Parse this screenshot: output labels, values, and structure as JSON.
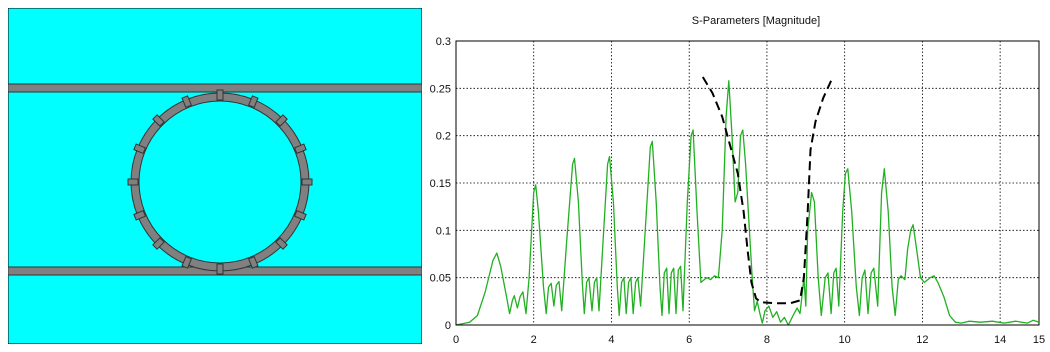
{
  "geometry_view": {
    "background_color": "#00ffff",
    "strip_color": "#808080",
    "ring_color": "#808080"
  },
  "chart_data": {
    "type": "line",
    "title": "S-Parameters [Magnitude]",
    "xlabel": "",
    "ylabel": "",
    "xlim": [
      0,
      15
    ],
    "ylim": [
      0,
      0.3
    ],
    "xticks": [
      0,
      2,
      4,
      6,
      8,
      10,
      12,
      14,
      15
    ],
    "yticks": [
      0,
      0.05,
      0.1,
      0.15,
      0.2,
      0.25,
      0.3
    ],
    "grid": true,
    "series": [
      {
        "color": "#22b022",
        "style": "solid",
        "points": [
          [
            0,
            0
          ],
          [
            0.35,
            0.003
          ],
          [
            0.55,
            0.01
          ],
          [
            0.75,
            0.035
          ],
          [
            0.95,
            0.068
          ],
          [
            1.05,
            0.076
          ],
          [
            1.15,
            0.062
          ],
          [
            1.3,
            0.03
          ],
          [
            1.38,
            0.012
          ],
          [
            1.45,
            0.026
          ],
          [
            1.5,
            0.031
          ],
          [
            1.58,
            0.018
          ],
          [
            1.65,
            0.03
          ],
          [
            1.72,
            0.035
          ],
          [
            1.8,
            0.012
          ],
          [
            1.88,
            0.05
          ],
          [
            2.0,
            0.14
          ],
          [
            2.05,
            0.148
          ],
          [
            2.12,
            0.12
          ],
          [
            2.25,
            0.04
          ],
          [
            2.32,
            0.012
          ],
          [
            2.38,
            0.04
          ],
          [
            2.45,
            0.044
          ],
          [
            2.52,
            0.02
          ],
          [
            2.58,
            0.042
          ],
          [
            2.65,
            0.046
          ],
          [
            2.72,
            0.015
          ],
          [
            2.85,
            0.09
          ],
          [
            3.0,
            0.17
          ],
          [
            3.05,
            0.176
          ],
          [
            3.15,
            0.13
          ],
          [
            3.25,
            0.045
          ],
          [
            3.3,
            0.012
          ],
          [
            3.36,
            0.045
          ],
          [
            3.42,
            0.05
          ],
          [
            3.5,
            0.015
          ],
          [
            3.56,
            0.045
          ],
          [
            3.62,
            0.05
          ],
          [
            3.68,
            0.015
          ],
          [
            3.8,
            0.1
          ],
          [
            3.9,
            0.17
          ],
          [
            3.95,
            0.178
          ],
          [
            4.05,
            0.13
          ],
          [
            4.15,
            0.04
          ],
          [
            4.2,
            0.01
          ],
          [
            4.26,
            0.045
          ],
          [
            4.32,
            0.05
          ],
          [
            4.38,
            0.012
          ],
          [
            4.44,
            0.045
          ],
          [
            4.5,
            0.05
          ],
          [
            4.56,
            0.012
          ],
          [
            4.62,
            0.045
          ],
          [
            4.68,
            0.05
          ],
          [
            4.75,
            0.02
          ],
          [
            4.9,
            0.12
          ],
          [
            5.0,
            0.188
          ],
          [
            5.05,
            0.194
          ],
          [
            5.15,
            0.13
          ],
          [
            5.25,
            0.04
          ],
          [
            5.3,
            0.01
          ],
          [
            5.36,
            0.055
          ],
          [
            5.42,
            0.06
          ],
          [
            5.48,
            0.012
          ],
          [
            5.54,
            0.055
          ],
          [
            5.6,
            0.06
          ],
          [
            5.66,
            0.012
          ],
          [
            5.72,
            0.058
          ],
          [
            5.78,
            0.062
          ],
          [
            5.84,
            0.015
          ],
          [
            5.95,
            0.13
          ],
          [
            6.05,
            0.2
          ],
          [
            6.1,
            0.206
          ],
          [
            6.2,
            0.12
          ],
          [
            6.3,
            0.045
          ],
          [
            6.45,
            0.05
          ],
          [
            6.55,
            0.048
          ],
          [
            6.65,
            0.052
          ],
          [
            6.75,
            0.05
          ],
          [
            6.85,
            0.1
          ],
          [
            6.95,
            0.22
          ],
          [
            7.02,
            0.258
          ],
          [
            7.1,
            0.2
          ],
          [
            7.18,
            0.13
          ],
          [
            7.25,
            0.14
          ],
          [
            7.32,
            0.2
          ],
          [
            7.38,
            0.206
          ],
          [
            7.45,
            0.17
          ],
          [
            7.55,
            0.1
          ],
          [
            7.62,
            0.05
          ],
          [
            7.68,
            0.015
          ],
          [
            7.75,
            0.025
          ],
          [
            7.82,
            0.012
          ],
          [
            7.88,
            0.002
          ],
          [
            7.95,
            0.015
          ],
          [
            8.05,
            0.02
          ],
          [
            8.15,
            0.008
          ],
          [
            8.25,
            0.014
          ],
          [
            8.35,
            0.003
          ],
          [
            8.45,
            0.008
          ],
          [
            8.55,
            0.0
          ],
          [
            8.7,
            0.012
          ],
          [
            8.78,
            0.018
          ],
          [
            8.85,
            0.012
          ],
          [
            8.9,
            0.03
          ],
          [
            8.95,
            0.05
          ],
          [
            9.0,
            0.02
          ],
          [
            9.05,
            0.1
          ],
          [
            9.15,
            0.14
          ],
          [
            9.22,
            0.13
          ],
          [
            9.32,
            0.05
          ],
          [
            9.4,
            0.01
          ],
          [
            9.5,
            0.05
          ],
          [
            9.57,
            0.055
          ],
          [
            9.65,
            0.012
          ],
          [
            9.72,
            0.055
          ],
          [
            9.78,
            0.06
          ],
          [
            9.85,
            0.02
          ],
          [
            9.95,
            0.12
          ],
          [
            10.02,
            0.16
          ],
          [
            10.08,
            0.165
          ],
          [
            10.18,
            0.12
          ],
          [
            10.3,
            0.04
          ],
          [
            10.38,
            0.01
          ],
          [
            10.45,
            0.05
          ],
          [
            10.52,
            0.058
          ],
          [
            10.6,
            0.012
          ],
          [
            10.68,
            0.055
          ],
          [
            10.75,
            0.06
          ],
          [
            10.85,
            0.02
          ],
          [
            10.95,
            0.14
          ],
          [
            11.02,
            0.165
          ],
          [
            11.12,
            0.12
          ],
          [
            11.22,
            0.04
          ],
          [
            11.3,
            0.01
          ],
          [
            11.38,
            0.048
          ],
          [
            11.45,
            0.052
          ],
          [
            11.55,
            0.048
          ],
          [
            11.62,
            0.08
          ],
          [
            11.7,
            0.1
          ],
          [
            11.76,
            0.106
          ],
          [
            11.85,
            0.08
          ],
          [
            11.95,
            0.05
          ],
          [
            12.05,
            0.045
          ],
          [
            12.2,
            0.05
          ],
          [
            12.3,
            0.052
          ],
          [
            12.4,
            0.045
          ],
          [
            12.55,
            0.03
          ],
          [
            12.7,
            0.01
          ],
          [
            12.85,
            0.003
          ],
          [
            13.0,
            0.002
          ],
          [
            13.2,
            0.004
          ],
          [
            13.5,
            0.003
          ],
          [
            13.8,
            0.004
          ],
          [
            14.1,
            0.002
          ],
          [
            14.4,
            0.004
          ],
          [
            14.7,
            0.002
          ],
          [
            14.85,
            0.005
          ],
          [
            15.0,
            0.003
          ]
        ]
      },
      {
        "color": "#000000",
        "style": "dashed",
        "points": [
          [
            6.35,
            0.262
          ],
          [
            6.6,
            0.245
          ],
          [
            6.85,
            0.22
          ],
          [
            7.05,
            0.19
          ],
          [
            7.25,
            0.16
          ],
          [
            7.4,
            0.12
          ],
          [
            7.5,
            0.08
          ],
          [
            7.6,
            0.045
          ],
          [
            7.72,
            0.028
          ],
          [
            7.85,
            0.024
          ],
          [
            8.2,
            0.023
          ],
          [
            8.6,
            0.023
          ],
          [
            8.85,
            0.026
          ],
          [
            8.95,
            0.05
          ],
          [
            9.05,
            0.12
          ],
          [
            9.12,
            0.185
          ],
          [
            9.25,
            0.215
          ],
          [
            9.45,
            0.24
          ],
          [
            9.65,
            0.258
          ]
        ]
      }
    ]
  }
}
